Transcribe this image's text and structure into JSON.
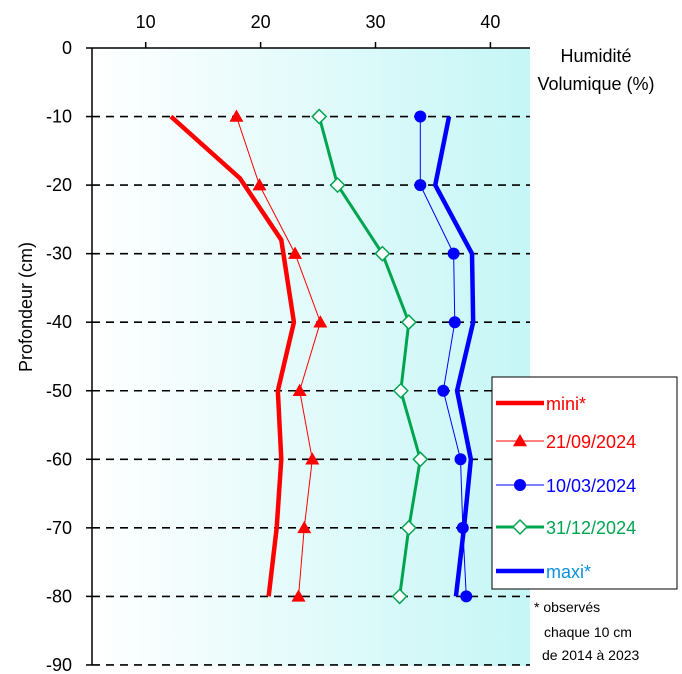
{
  "chart_data": {
    "type": "line",
    "title": "",
    "xlabel_lines": [
      "Humidité",
      "Volumique  (%)"
    ],
    "ylabel": "Profondeur (cm)",
    "xlim": [
      5,
      45
    ],
    "ylim": [
      -90,
      0
    ],
    "xticks": [
      10,
      20,
      30,
      40
    ],
    "yticks": [
      0,
      -10,
      -20,
      -30,
      -40,
      -50,
      -60,
      -70,
      -80,
      -90
    ],
    "grid": "horizontal dashed",
    "legend_position": "right",
    "series": [
      {
        "name": "mini*",
        "color": "#ff0000",
        "line": "thick",
        "marker": "none",
        "points": [
          [
            12.2,
            -10
          ],
          [
            18.2,
            -19
          ],
          [
            21.8,
            -28
          ],
          [
            22.9,
            -40
          ],
          [
            21.5,
            -50
          ],
          [
            21.8,
            -60
          ],
          [
            21.4,
            -70
          ],
          [
            20.7,
            -80
          ]
        ]
      },
      {
        "name": "21/09/2024",
        "color": "#ff0000",
        "line": "thin",
        "marker": "triangle",
        "points": [
          [
            17.9,
            -10
          ],
          [
            19.9,
            -20
          ],
          [
            23.0,
            -30
          ],
          [
            25.2,
            -40
          ],
          [
            23.4,
            -50
          ],
          [
            24.5,
            -60
          ],
          [
            23.8,
            -70
          ],
          [
            23.3,
            -80
          ]
        ]
      },
      {
        "name": "10/03/2024",
        "color": "#0000ff",
        "line": "thin",
        "marker": "circle",
        "points": [
          [
            33.9,
            -10
          ],
          [
            33.9,
            -20
          ],
          [
            36.8,
            -30
          ],
          [
            36.9,
            -40
          ],
          [
            35.9,
            -50
          ],
          [
            37.4,
            -60
          ],
          [
            37.6,
            -70
          ],
          [
            37.9,
            -80
          ]
        ]
      },
      {
        "name": "31/12/2024",
        "color": "#00a550",
        "line": "medium",
        "marker": "diamond-open",
        "points": [
          [
            25.1,
            -10
          ],
          [
            26.7,
            -20
          ],
          [
            30.6,
            -30
          ],
          [
            32.9,
            -40
          ],
          [
            32.2,
            -50
          ],
          [
            33.9,
            -60
          ],
          [
            32.9,
            -70
          ],
          [
            32.1,
            -80
          ]
        ]
      },
      {
        "name": "maxi*",
        "color": "#0000ff",
        "line": "thick",
        "marker": "none",
        "points": [
          [
            36.4,
            -10
          ],
          [
            35.2,
            -20
          ],
          [
            38.4,
            -30
          ],
          [
            38.5,
            -40
          ],
          [
            37.1,
            -50
          ],
          [
            38.3,
            -60
          ],
          [
            37.7,
            -70
          ],
          [
            37.0,
            -80
          ]
        ]
      }
    ],
    "legend_text_colors": [
      "#ff0000",
      "#ff0000",
      "#0000ff",
      "#00a550",
      "#0b8fe0"
    ],
    "footnote": [
      "* observés",
      "chaque  10 cm",
      "de 2014 à 2023"
    ]
  }
}
